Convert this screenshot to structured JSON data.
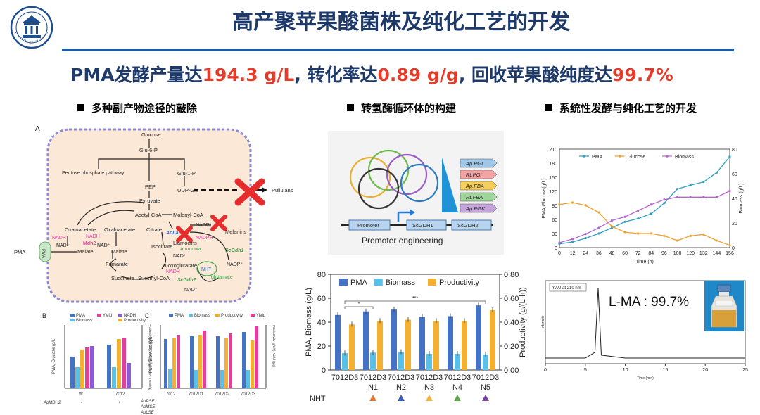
{
  "title": "高产聚苹果酸菌株及纯化工艺的开发",
  "headline": {
    "p1": "PMA发酵产量达",
    "v1": "194.3 g/L",
    "p2": ", 转化率达",
    "v2": "0.89 g/g",
    "p3": ", 回收苹果酸纯度达",
    "v3": "99.7%"
  },
  "sections": [
    "多种副产物途径的敲除",
    "转氢酶循环体的构建",
    "系统性发酵与纯化工艺的开发"
  ],
  "pathway": {
    "panel_label": "A",
    "nodes": {
      "glucose": "Glucose",
      "glu6p": "Glu-6-P",
      "ppp": "Pentose phosphate pathway",
      "glu1p": "Glu-1-P",
      "pep": "PEP",
      "udpglu": "UDP-Glu",
      "pullulans": "Pullulans",
      "pyruvate": "Pyruvate",
      "acetylcoa": "Acetyl-CoA",
      "malonylcoa": "Malonyl-CoA",
      "oxaloacetate1": "Oxaloacetate",
      "oxaloacetate2": "Oxaloacetate",
      "citrate": "Citrate",
      "isocitrate": "Isocitrate",
      "malate1": "Malate",
      "malate2": "Malate",
      "fumarate": "Fumarate",
      "akg": "α-oxoglutarate",
      "succinate": "Succinate",
      "succinylcoa": "Succinyl-CoA",
      "liamocins": "Liamocins",
      "melanins": "Melanins",
      "ammonia": "Ammonia",
      "glutamate": "glutamate",
      "pma_out": "PMA",
      "pma_trans": "PMA"
    },
    "enzymes": {
      "mdh2": "Mdh2",
      "aplac": "ApLa",
      "scgdh1": "ScGdh1",
      "scgdh2": "ScGdh2",
      "nht": "NHT"
    },
    "cofactors": {
      "nadh1": "NADH",
      "nadh2": "NADH",
      "nadh3": "NADH",
      "nad1": "NAD⁺",
      "nad2": "NAD⁺",
      "nad3": "NAD⁺",
      "nad4": "NAD⁺",
      "nadp1": "NADP⁺",
      "nadp2": "NADP⁺",
      "nadph": "NADPH"
    }
  },
  "mini_charts": {
    "b_label": "B",
    "c_label": "C",
    "b_legend": [
      "PMA",
      "Biomass",
      "Yield",
      "NADH",
      "Productivity"
    ],
    "c_legend": [
      "PMA",
      "Biomass",
      "Productivity",
      "Yield"
    ],
    "b_x": [
      "WT",
      "7012"
    ],
    "b_gene": "ApMDH2",
    "c_x": [
      "7012",
      "7012D1",
      "7012D2",
      "7012D3"
    ],
    "c_genes": [
      "ApPSE",
      "ApMSE",
      "ApLSE"
    ],
    "b_ylabel": "PMA, Glucose (g/L)",
    "b_y2label": "Productivity (g/L/h), Yield (g/g), NADH (mmol/g)",
    "c_ylabel": "PMA, Biomass (g/L)",
    "c_y2label": "Productivity (g/L/h), Yield (g/g)"
  },
  "nht_diagram": {
    "genes": [
      "Ap.PGI",
      "Rt.PGI",
      "Ap.FBA",
      "Rt.FBA",
      "Ap.PGK"
    ],
    "gene_colors": [
      "#9ec7e8",
      "#f3a3a3",
      "#f5cf5a",
      "#9fd49b",
      "#c6a5dc"
    ],
    "promoter": "Promoter",
    "gdh1": "ScGDH1",
    "gdh2": "ScGDH2",
    "caption": "Promoter engineering"
  },
  "chart_data": [
    {
      "type": "bar",
      "categories": [
        "7012D3",
        "7012D3 N1",
        "7012D3 N2",
        "7012D3 N3",
        "7012D3 N4",
        "7012D3 N5"
      ],
      "cat_top": [
        "7012D3",
        "7012D3",
        "7012D3",
        "7012D3",
        "7012D3",
        "7012D3"
      ],
      "cat_bottom": [
        "",
        "N1",
        "N2",
        "N3",
        "N4",
        "N5"
      ],
      "triangle_colors": [
        "",
        "#e07a3a",
        "#3d5fb8",
        "#f0b43a",
        "#62a84c",
        "#7b3f9e"
      ],
      "nht_label": "NHT",
      "series": [
        {
          "name": "PMA",
          "axis": "left",
          "color": "#4472c4",
          "values": [
            46,
            49,
            50.5,
            44.5,
            45,
            54
          ]
        },
        {
          "name": "Biomass",
          "axis": "left",
          "color": "#5bc0e8",
          "values": [
            14,
            14.5,
            15,
            13.5,
            13.5,
            13
          ]
        },
        {
          "name": "Productivity",
          "axis": "right",
          "color": "#f5b030",
          "values": [
            0.38,
            0.41,
            0.42,
            0.41,
            0.41,
            0.5
          ]
        }
      ],
      "ylabel": "PMA, Biomass (g/L)",
      "y2label": "Productivity (g/(L·h))",
      "ylim": [
        0,
        80
      ],
      "y2lim": [
        0,
        0.8
      ],
      "yticks": [
        "0",
        "20",
        "40",
        "60",
        "80"
      ],
      "y2ticks": [
        "0.00",
        "0.20",
        "0.40",
        "0.60",
        "0.80"
      ],
      "annotations": [
        "*",
        "***"
      ],
      "legend": "top"
    },
    {
      "type": "line",
      "x": [
        0,
        12,
        24,
        36,
        48,
        60,
        72,
        84,
        96,
        108,
        120,
        132,
        144,
        156
      ],
      "xticks": [
        "0",
        "12",
        "24",
        "36",
        "48",
        "60",
        "72",
        "84",
        "96",
        "108",
        "120",
        "132",
        "144",
        "156"
      ],
      "series": [
        {
          "name": "PMA",
          "axis": "left",
          "color": "#2f9fbf",
          "values": [
            8,
            12,
            20,
            30,
            42,
            55,
            62,
            72,
            95,
            125,
            133,
            140,
            160,
            194
          ]
        },
        {
          "name": "Glucose",
          "axis": "left",
          "color": "#f0a030",
          "values": [
            92,
            96,
            90,
            75,
            45,
            33,
            30,
            30,
            25,
            15,
            25,
            28,
            15,
            5
          ]
        },
        {
          "name": "Biomass",
          "axis": "right",
          "color": "#b565d0",
          "values": [
            4,
            7,
            11,
            16,
            22,
            25,
            30,
            35,
            39,
            41,
            41,
            41,
            41,
            46
          ]
        }
      ],
      "xlabel": "Time (h)",
      "ylabel": "PMA,Glucose(g/L)",
      "y2label": "Biomass (g/L)",
      "ylim": [
        0,
        210
      ],
      "y2lim": [
        0,
        80
      ],
      "yticks": [
        "0",
        "30",
        "60",
        "90",
        "120",
        "150",
        "180",
        "210"
      ],
      "y2ticks": [
        "0",
        "20",
        "40",
        "60",
        "80"
      ],
      "legend": "top"
    },
    {
      "type": "line",
      "title_box": "mAU at 210 nm",
      "annotation": "L-MA : 99.7%",
      "x": [
        0,
        5,
        6.2,
        6.6,
        7,
        10,
        15,
        20,
        25
      ],
      "values": [
        2,
        2,
        10,
        100,
        6,
        2,
        2,
        2,
        2
      ],
      "xticks": [
        "0",
        "5",
        "10",
        "15",
        "20",
        "25"
      ],
      "xlabel": "Time (min)",
      "ylabel": "Intensity",
      "xlim": [
        0,
        25
      ]
    }
  ]
}
